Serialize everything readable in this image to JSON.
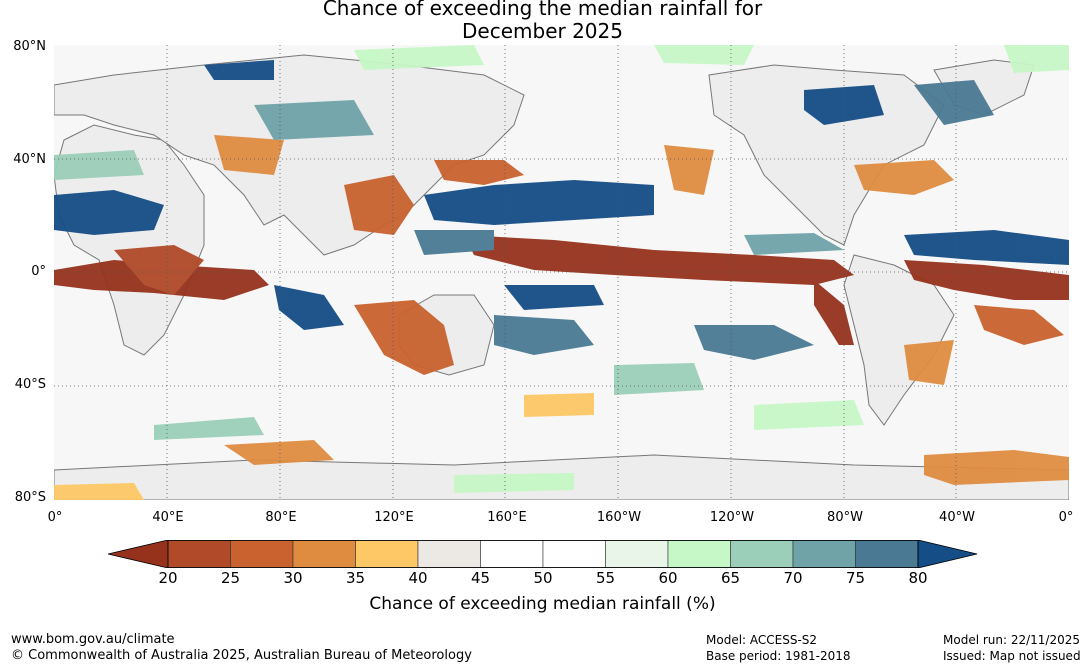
{
  "title": {
    "line1": "Chance of exceeding the median rainfall for",
    "line2": "December 2025"
  },
  "map": {
    "lat_labels": [
      "80°N",
      "40°N",
      "0°",
      "40°S",
      "80°S"
    ],
    "lon_labels": [
      "0°",
      "40°E",
      "80°E",
      "120°E",
      "160°E",
      "160°W",
      "120°W",
      "80°W",
      "40°W",
      "0°"
    ]
  },
  "colorbar": {
    "label": "Chance of exceeding median rainfall (%)",
    "ticks": [
      "20",
      "25",
      "30",
      "35",
      "40",
      "45",
      "50",
      "55",
      "60",
      "65",
      "70",
      "75",
      "80"
    ],
    "low_color": "#96321c",
    "high_color": "#154d86",
    "colors": [
      "#b04a28",
      "#c9622f",
      "#df8c41",
      "#fdc865",
      "#ece8e4",
      "#ffffff",
      "#ffffff",
      "#e8f5e8",
      "#c6f7c6",
      "#9ccfb9",
      "#6fa3a8",
      "#4a7a93"
    ]
  },
  "footer": {
    "url": "www.bom.gov.au/climate",
    "copyright": "© Commonwealth of Australia 2025, Australian Bureau of Meteorology",
    "model": "Model: ACCESS-S2",
    "base_period": "Base period: 1981-2018",
    "model_run": "Model run: 22/11/2025",
    "issued": "Issued: Map not issued"
  }
}
